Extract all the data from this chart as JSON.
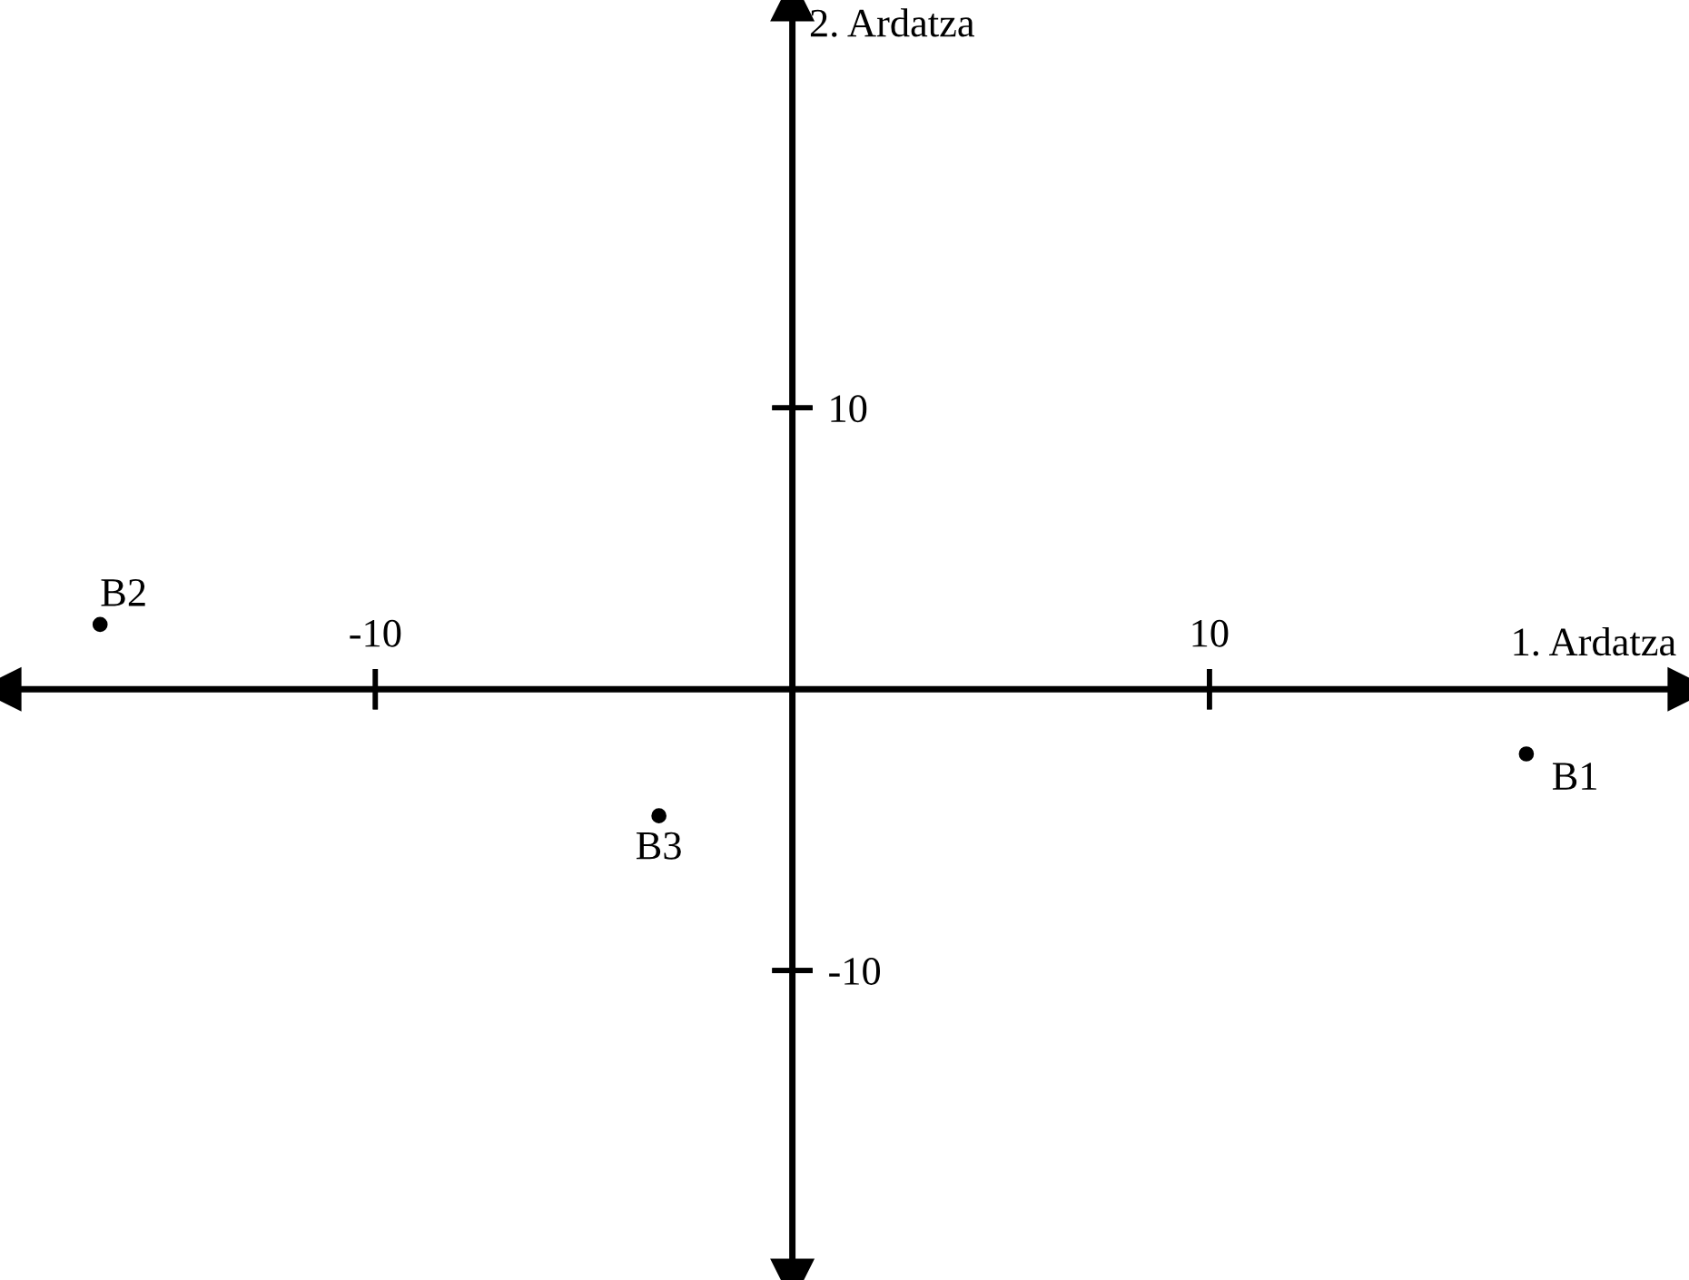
{
  "chart_data": {
    "type": "scatter",
    "xlabel": "1. Ardatza",
    "ylabel": "2. Ardatza",
    "x": [
      17.6,
      -16.6,
      -3.2
    ],
    "series": [
      {
        "color": "#000000",
        "values": [
          -2.3,
          2.3,
          -4.5
        ]
      }
    ],
    "annotations": [
      {
        "text": "B1",
        "x": 17.6,
        "y": -2.3
      },
      {
        "text": "B2",
        "x": -16.6,
        "y": 2.3
      },
      {
        "text": "B3",
        "x": -3.2,
        "y": -4.5
      }
    ],
    "xlim": [
      -19.0,
      21.5
    ],
    "ylim": [
      -21,
      24.5
    ],
    "xticks": [
      -10,
      10
    ],
    "yticks": [
      -10,
      10
    ],
    "marker": "circle",
    "grid": false,
    "legend": false
  }
}
